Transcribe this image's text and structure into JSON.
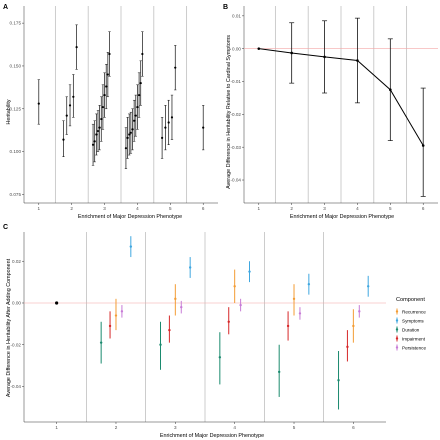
{
  "chart_data": [
    {
      "panel": "A",
      "type": "scatter",
      "xlabel": "Enrichment of Major Depression Phenotype",
      "ylabel": "Heritability",
      "x_ticks": [
        1,
        2,
        3,
        4,
        5,
        6
      ],
      "y_ticks": [
        0.075,
        0.1,
        0.125,
        0.15,
        0.175
      ],
      "ylim": [
        0.07,
        0.185
      ],
      "grid": "vertical separators between groups",
      "points": [
        {
          "x": 1.0,
          "y": 0.128,
          "lo": 0.116,
          "hi": 0.142
        },
        {
          "x": 1.75,
          "y": 0.107,
          "lo": 0.097,
          "hi": 0.118
        },
        {
          "x": 1.85,
          "y": 0.121,
          "lo": 0.11,
          "hi": 0.132
        },
        {
          "x": 1.95,
          "y": 0.127,
          "lo": 0.115,
          "hi": 0.139
        },
        {
          "x": 2.05,
          "y": 0.132,
          "lo": 0.12,
          "hi": 0.145
        },
        {
          "x": 2.15,
          "y": 0.161,
          "lo": 0.148,
          "hi": 0.174
        },
        {
          "x": 2.65,
          "y": 0.104,
          "lo": 0.092,
          "hi": 0.116
        },
        {
          "x": 2.7,
          "y": 0.106,
          "lo": 0.094,
          "hi": 0.118
        },
        {
          "x": 2.75,
          "y": 0.11,
          "lo": 0.098,
          "hi": 0.122
        },
        {
          "x": 2.8,
          "y": 0.112,
          "lo": 0.1,
          "hi": 0.124
        },
        {
          "x": 2.85,
          "y": 0.114,
          "lo": 0.101,
          "hi": 0.127
        },
        {
          "x": 2.9,
          "y": 0.119,
          "lo": 0.106,
          "hi": 0.132
        },
        {
          "x": 2.95,
          "y": 0.126,
          "lo": 0.113,
          "hi": 0.139
        },
        {
          "x": 3.0,
          "y": 0.133,
          "lo": 0.12,
          "hi": 0.146
        },
        {
          "x": 3.05,
          "y": 0.138,
          "lo": 0.125,
          "hi": 0.151
        },
        {
          "x": 3.1,
          "y": 0.145,
          "lo": 0.132,
          "hi": 0.158
        },
        {
          "x": 3.15,
          "y": 0.157,
          "lo": 0.144,
          "hi": 0.17
        },
        {
          "x": 3.65,
          "y": 0.102,
          "lo": 0.09,
          "hi": 0.114
        },
        {
          "x": 3.7,
          "y": 0.108,
          "lo": 0.096,
          "hi": 0.12
        },
        {
          "x": 3.75,
          "y": 0.11,
          "lo": 0.098,
          "hi": 0.122
        },
        {
          "x": 3.8,
          "y": 0.111,
          "lo": 0.099,
          "hi": 0.123
        },
        {
          "x": 3.85,
          "y": 0.113,
          "lo": 0.101,
          "hi": 0.125
        },
        {
          "x": 3.9,
          "y": 0.118,
          "lo": 0.106,
          "hi": 0.13
        },
        {
          "x": 3.95,
          "y": 0.121,
          "lo": 0.109,
          "hi": 0.133
        },
        {
          "x": 4.0,
          "y": 0.126,
          "lo": 0.113,
          "hi": 0.139
        },
        {
          "x": 4.05,
          "y": 0.133,
          "lo": 0.12,
          "hi": 0.146
        },
        {
          "x": 4.1,
          "y": 0.14,
          "lo": 0.127,
          "hi": 0.153
        },
        {
          "x": 4.15,
          "y": 0.157,
          "lo": 0.144,
          "hi": 0.17
        },
        {
          "x": 4.75,
          "y": 0.108,
          "lo": 0.096,
          "hi": 0.12
        },
        {
          "x": 4.85,
          "y": 0.114,
          "lo": 0.101,
          "hi": 0.127
        },
        {
          "x": 4.95,
          "y": 0.117,
          "lo": 0.104,
          "hi": 0.13
        },
        {
          "x": 5.05,
          "y": 0.12,
          "lo": 0.107,
          "hi": 0.133
        },
        {
          "x": 5.15,
          "y": 0.149,
          "lo": 0.136,
          "hi": 0.162
        },
        {
          "x": 6.0,
          "y": 0.114,
          "lo": 0.101,
          "hi": 0.127
        }
      ]
    },
    {
      "panel": "B",
      "type": "line",
      "xlabel": "Enrichment of Major Depression Phenotype",
      "ylabel": "Average Difference in Heritability Relative to Cardinal Symptoms",
      "x_ticks": [
        1,
        2,
        3,
        4,
        5,
        6
      ],
      "y_ticks": [
        -0.04,
        -0.03,
        -0.02,
        -0.01,
        0.0,
        0.01
      ],
      "ylim": [
        -0.047,
        0.013
      ],
      "reference_line": {
        "y": 0,
        "color": "#f4a6a6"
      },
      "x": [
        1,
        2,
        3,
        4,
        5,
        6
      ],
      "y": [
        0.0,
        -0.0013,
        -0.0025,
        -0.0036,
        -0.0125,
        -0.0295
      ],
      "lo": [
        0.0,
        -0.0105,
        -0.0135,
        -0.0165,
        -0.028,
        -0.045
      ],
      "hi": [
        0.0,
        0.0079,
        0.0085,
        0.0093,
        0.003,
        -0.012
      ]
    },
    {
      "panel": "C",
      "type": "scatter",
      "xlabel": "Enrichment of Major Depression Phenotype",
      "ylabel": "Average Difference in Heritability After Adding Component",
      "x_ticks": [
        1,
        2,
        3,
        4,
        5,
        6
      ],
      "y_ticks": [
        -0.04,
        -0.02,
        0.0,
        0.02
      ],
      "ylim": [
        -0.057,
        0.034
      ],
      "reference_line": {
        "y": 0,
        "color": "#f4a6a6"
      },
      "legend": {
        "title": "Component",
        "placement": "right",
        "entries": [
          {
            "label": "Recurrence",
            "color": "#f39c34"
          },
          {
            "label": "Symptoms",
            "color": "#3fa7e0"
          },
          {
            "label": "Duration",
            "color": "#1a8a6e"
          },
          {
            "label": "Impairment",
            "color": "#d62728"
          },
          {
            "label": "Persistence",
            "color": "#c77bd6"
          }
        ]
      },
      "baseline_point": {
        "x": 1,
        "y": 0.0,
        "color": "#000000"
      },
      "series": [
        {
          "name": "Duration",
          "offset": -0.25,
          "y": [
            -0.019,
            -0.02,
            -0.026,
            -0.033,
            -0.037
          ],
          "lo": [
            -0.029,
            -0.032,
            -0.039,
            -0.045,
            -0.051
          ],
          "hi": [
            -0.009,
            -0.009,
            -0.014,
            -0.02,
            -0.023
          ]
        },
        {
          "name": "Impairment",
          "offset": -0.1,
          "y": [
            -0.011,
            -0.013,
            -0.009,
            -0.011,
            -0.021
          ],
          "lo": [
            -0.017,
            -0.019,
            -0.015,
            -0.018,
            -0.028
          ],
          "hi": [
            -0.004,
            -0.006,
            -0.002,
            -0.004,
            -0.013
          ]
        },
        {
          "name": "Recurrence",
          "offset": 0.0,
          "y": [
            -0.006,
            0.002,
            0.008,
            0.002,
            -0.011
          ],
          "lo": [
            -0.013,
            -0.006,
            0.0,
            -0.006,
            -0.019
          ],
          "hi": [
            0.002,
            0.009,
            0.016,
            0.009,
            -0.003
          ]
        },
        {
          "name": "Persistence",
          "offset": 0.1,
          "y": [
            -0.004,
            -0.002,
            -0.001,
            -0.005,
            -0.004
          ],
          "lo": [
            -0.007,
            -0.005,
            -0.004,
            -0.008,
            -0.007
          ],
          "hi": [
            -0.001,
            0.001,
            0.002,
            -0.002,
            -0.001
          ]
        },
        {
          "name": "Symptoms",
          "offset": 0.25,
          "y": [
            0.027,
            0.017,
            0.015,
            0.009,
            0.008
          ],
          "lo": [
            0.022,
            0.012,
            0.01,
            0.004,
            0.003
          ],
          "hi": [
            0.032,
            0.022,
            0.02,
            0.014,
            0.013
          ]
        }
      ],
      "groups_x": [
        2,
        3,
        4,
        5,
        6
      ]
    }
  ]
}
